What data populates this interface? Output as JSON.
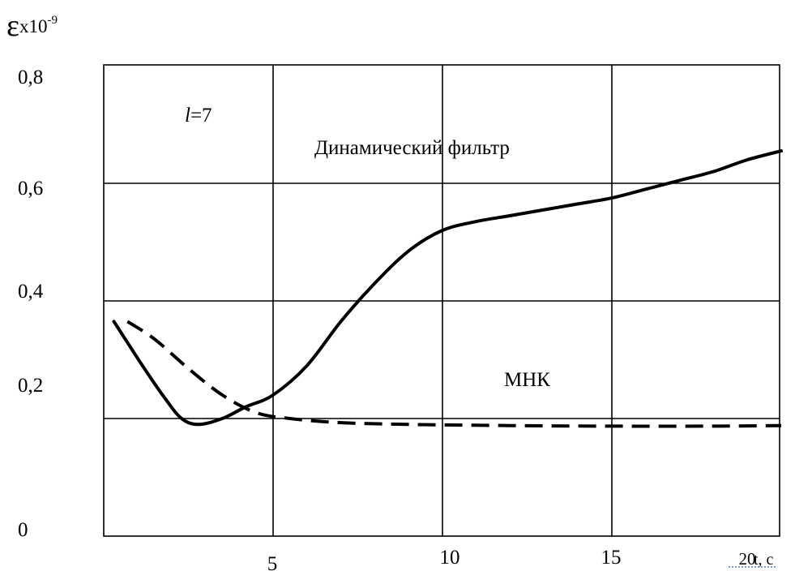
{
  "chart_data": {
    "type": "line",
    "ylabel": {
      "symbol": "ε",
      "multiplier": "x10",
      "exponent": "-9"
    },
    "xlabel": "t, c",
    "x_ticks": [
      "5",
      "10",
      "15",
      "20"
    ],
    "y_ticks": [
      "0",
      "0,2",
      "0,4",
      "0,6",
      "0,8"
    ],
    "xlim": [
      0,
      20
    ],
    "ylim": [
      0,
      0.8
    ],
    "grid": true,
    "annotations": [
      {
        "id": "param",
        "italic": "l",
        "text": "=7"
      },
      {
        "id": "dyn-label",
        "text": "Динамический фильтр"
      },
      {
        "id": "mnk-label",
        "text": "МНК"
      }
    ],
    "series": [
      {
        "name": "Динамический фильтр",
        "style": "solid",
        "points": [
          [
            0.3,
            0.365
          ],
          [
            1.2,
            0.285
          ],
          [
            1.8,
            0.235
          ],
          [
            2.3,
            0.2
          ],
          [
            2.8,
            0.19
          ],
          [
            3.5,
            0.2
          ],
          [
            4.2,
            0.22
          ],
          [
            5.0,
            0.24
          ],
          [
            6.0,
            0.29
          ],
          [
            7.0,
            0.365
          ],
          [
            8.0,
            0.43
          ],
          [
            9.0,
            0.485
          ],
          [
            10.0,
            0.52
          ],
          [
            11.0,
            0.535
          ],
          [
            12.0,
            0.545
          ],
          [
            13.0,
            0.555
          ],
          [
            14.0,
            0.565
          ],
          [
            15.0,
            0.575
          ],
          [
            16.0,
            0.59
          ],
          [
            17.0,
            0.605
          ],
          [
            18.0,
            0.62
          ],
          [
            19.0,
            0.64
          ],
          [
            20.0,
            0.655
          ]
        ]
      },
      {
        "name": "МНК",
        "style": "dashed",
        "points": [
          [
            0.7,
            0.365
          ],
          [
            1.5,
            0.335
          ],
          [
            2.5,
            0.285
          ],
          [
            3.5,
            0.24
          ],
          [
            4.5,
            0.21
          ],
          [
            5.5,
            0.2
          ],
          [
            7.0,
            0.193
          ],
          [
            9.0,
            0.19
          ],
          [
            12.0,
            0.188
          ],
          [
            15.0,
            0.187
          ],
          [
            18.0,
            0.187
          ],
          [
            20.0,
            0.188
          ]
        ]
      }
    ]
  }
}
